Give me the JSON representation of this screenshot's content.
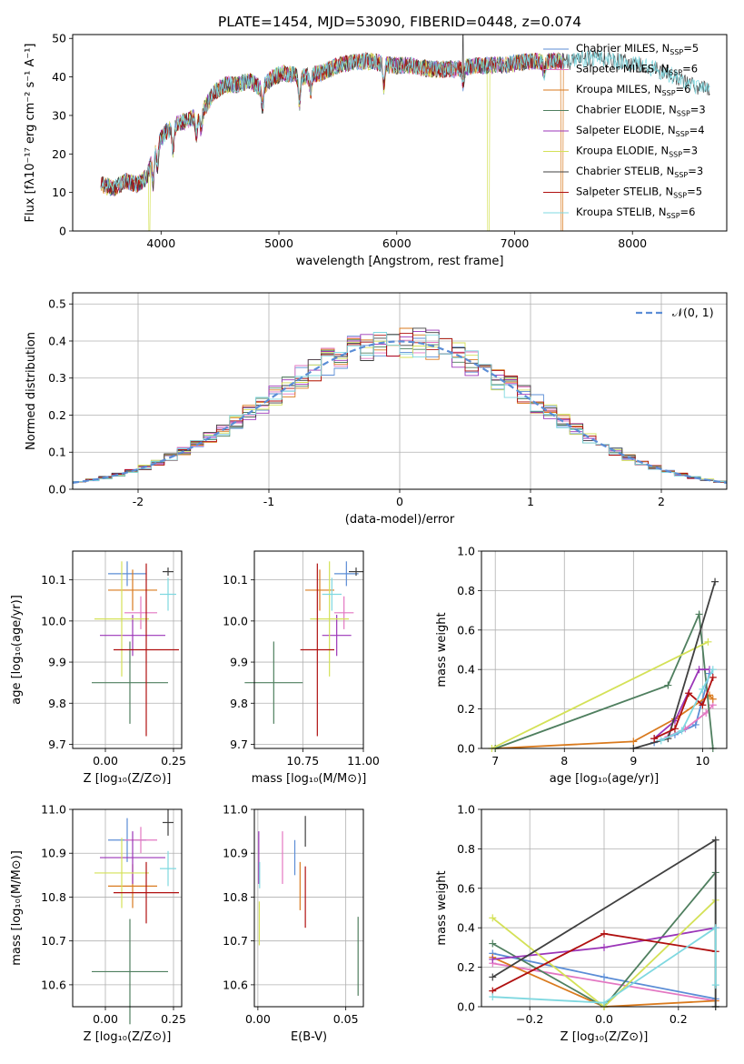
{
  "figure": {
    "title": "PLATE=1454, MJD=53090, FIBERID=0448, z=0.074"
  },
  "chart_data": [
    {
      "id": "spectrum",
      "type": "line",
      "title": "PLATE=1454, MJD=53090, FIBERID=0448, z=0.074",
      "xlabel": "wavelength [Angstrom, rest frame]",
      "ylabel": "Flux [fλ10⁻¹⁷ erg cm⁻² s⁻¹ A⁻¹]",
      "xlim": [
        3250,
        8800
      ],
      "ylim": [
        0,
        51
      ],
      "xticks": [
        4000,
        5000,
        6000,
        7000,
        8000
      ],
      "yticks": [
        0,
        10,
        20,
        30,
        40,
        50
      ],
      "grid": false,
      "legend": "upper right",
      "series": [
        {
          "name": "Chabrier MILES, N",
          "nssp": "=5",
          "color": "#5b8dd6"
        },
        {
          "name": "Salpeter MILES, N",
          "nssp": "=6",
          "color": "#e377c2"
        },
        {
          "name": "Kroupa MILES, N",
          "nssp": "=6",
          "color": "#d97a1e"
        },
        {
          "name": "Chabrier ELODIE, N",
          "nssp": "=3",
          "color": "#4f7f5f"
        },
        {
          "name": "Salpeter ELODIE, N",
          "nssp": "=4",
          "color": "#9b35b8"
        },
        {
          "name": "Kroupa ELODIE, N",
          "nssp": "=3",
          "color": "#d4e157"
        },
        {
          "name": "Chabrier STELIB, N",
          "nssp": "=3",
          "color": "#404040"
        },
        {
          "name": "Salpeter STELIB, N",
          "nssp": "=5",
          "color": "#b01010"
        },
        {
          "name": "Kroupa STELIB, N",
          "nssp": "=6",
          "color": "#7fd8e0"
        }
      ],
      "continuum": [
        [
          3500,
          12
        ],
        [
          3600,
          11
        ],
        [
          3700,
          13
        ],
        [
          3800,
          12
        ],
        [
          3880,
          14
        ],
        [
          3950,
          22
        ],
        [
          4050,
          26
        ],
        [
          4150,
          28
        ],
        [
          4250,
          29
        ],
        [
          4350,
          31
        ],
        [
          4450,
          36
        ],
        [
          4550,
          38
        ],
        [
          4650,
          38
        ],
        [
          4750,
          39
        ],
        [
          4850,
          37
        ],
        [
          4950,
          40
        ],
        [
          5050,
          41
        ],
        [
          5200,
          40
        ],
        [
          5350,
          41
        ],
        [
          5500,
          43
        ],
        [
          5650,
          44
        ],
        [
          5800,
          44
        ],
        [
          5950,
          43
        ],
        [
          6100,
          43
        ],
        [
          6300,
          42
        ],
        [
          6500,
          42
        ],
        [
          6700,
          43
        ],
        [
          6900,
          43
        ],
        [
          7100,
          44
        ],
        [
          7300,
          44
        ],
        [
          7500,
          44
        ],
        [
          7700,
          45
        ],
        [
          7900,
          44
        ],
        [
          8100,
          43
        ],
        [
          8300,
          41
        ],
        [
          8500,
          38
        ],
        [
          8700,
          36
        ]
      ],
      "absorptions": [
        {
          "x": 3934,
          "depth": 8
        },
        {
          "x": 3968,
          "depth": 6
        },
        {
          "x": 4102,
          "depth": 6
        },
        {
          "x": 4300,
          "depth": 5
        },
        {
          "x": 4340,
          "depth": 5
        },
        {
          "x": 4861,
          "depth": 5
        },
        {
          "x": 5175,
          "depth": 7
        },
        {
          "x": 5270,
          "depth": 4
        },
        {
          "x": 5890,
          "depth": 6
        },
        {
          "x": 6563,
          "depth": 4
        },
        {
          "x": 7250,
          "depth": 3
        }
      ]
    },
    {
      "id": "residuals",
      "type": "histogram",
      "xlabel": "(data-model)/error",
      "ylabel": "Normed distribution",
      "xlim": [
        -2.5,
        2.5
      ],
      "ylim": [
        0,
        0.53
      ],
      "xticks": [
        -2,
        -1,
        0,
        1,
        2
      ],
      "yticks": [
        0.0,
        0.1,
        0.2,
        0.3,
        0.4,
        0.5
      ],
      "grid": true,
      "legend": "upper right",
      "reference_label": "𝒩(0, 1)",
      "reference_color": "#5b8dd6",
      "bin_width": 0.1
    },
    {
      "id": "age_vs_Z",
      "type": "errorbar",
      "xlabel": "Z [log₁₀(Z/Z⊙)]",
      "ylabel": "age  [log₁₀(age/yr)]",
      "xlim": [
        -0.12,
        0.28
      ],
      "ylim": [
        9.69,
        10.17
      ],
      "xticks": [
        0.0,
        0.25
      ],
      "xticklabels": [
        "0.00",
        "0.25"
      ],
      "yticks": [
        9.7,
        9.8,
        9.9,
        10.0,
        10.1
      ],
      "points": [
        {
          "x": 0.08,
          "xerr": 0.07,
          "y": 10.115,
          "yerr": 0.03,
          "color": "#5b8dd6"
        },
        {
          "x": 0.13,
          "xerr": 0.06,
          "y": 10.02,
          "yerr": 0.04,
          "color": "#e377c2"
        },
        {
          "x": 0.1,
          "xerr": 0.09,
          "y": 10.075,
          "yerr": 0.05,
          "color": "#d97a1e"
        },
        {
          "x": 0.09,
          "xerr": 0.14,
          "y": 9.85,
          "yerr": 0.1,
          "color": "#4f7f5f"
        },
        {
          "x": 0.1,
          "xerr": 0.12,
          "y": 9.965,
          "yerr": 0.05,
          "color": "#9b35b8"
        },
        {
          "x": 0.06,
          "xerr": 0.1,
          "y": 10.005,
          "yerr": 0.14,
          "color": "#d4e157"
        },
        {
          "x": 0.23,
          "xerr": 0.02,
          "y": 10.12,
          "yerr": 0.01,
          "color": "#404040"
        },
        {
          "x": 0.15,
          "xerr": 0.12,
          "y": 9.93,
          "yerr": 0.21,
          "color": "#b01010"
        },
        {
          "x": 0.23,
          "xerr": 0.03,
          "y": 10.065,
          "yerr": 0.04,
          "color": "#7fd8e0"
        }
      ]
    },
    {
      "id": "age_vs_mass",
      "type": "errorbar",
      "xlabel": "mass [log₁₀(M/M⊙)]",
      "ylabel": "",
      "xlim": [
        10.55,
        11.0
      ],
      "ylim": [
        9.69,
        10.17
      ],
      "xticks": [
        10.75,
        11.0
      ],
      "xticklabels": [
        "10.75",
        "11.00"
      ],
      "yticks": [
        9.7,
        9.8,
        9.9,
        10.0,
        10.1
      ],
      "points": [
        {
          "x": 10.93,
          "xerr": 0.05,
          "y": 10.115,
          "yerr": 0.03,
          "color": "#5b8dd6"
        },
        {
          "x": 10.92,
          "xerr": 0.04,
          "y": 10.02,
          "yerr": 0.04,
          "color": "#e377c2"
        },
        {
          "x": 10.82,
          "xerr": 0.06,
          "y": 10.075,
          "yerr": 0.05,
          "color": "#d97a1e"
        },
        {
          "x": 10.63,
          "xerr": 0.12,
          "y": 9.85,
          "yerr": 0.1,
          "color": "#4f7f5f"
        },
        {
          "x": 10.89,
          "xerr": 0.06,
          "y": 9.965,
          "yerr": 0.05,
          "color": "#9b35b8"
        },
        {
          "x": 10.86,
          "xerr": 0.08,
          "y": 10.005,
          "yerr": 0.14,
          "color": "#d4e157"
        },
        {
          "x": 10.97,
          "xerr": 0.03,
          "y": 10.12,
          "yerr": 0.01,
          "color": "#404040"
        },
        {
          "x": 10.81,
          "xerr": 0.07,
          "y": 9.93,
          "yerr": 0.21,
          "color": "#b01010"
        },
        {
          "x": 10.87,
          "xerr": 0.04,
          "y": 10.065,
          "yerr": 0.04,
          "color": "#7fd8e0"
        }
      ]
    },
    {
      "id": "weight_vs_age",
      "type": "line",
      "xlabel": "age  [log₁₀(age/yr)]",
      "ylabel": "mass weight",
      "xlim": [
        6.8,
        10.35
      ],
      "ylim": [
        0,
        1
      ],
      "xticks": [
        7,
        8,
        9,
        10
      ],
      "yticks": [
        0.0,
        0.2,
        0.4,
        0.6,
        0.8,
        1.0
      ],
      "grid": true,
      "series": [
        {
          "color": "#5b8dd6",
          "x": [
            9.3,
            9.6,
            9.9,
            10.1
          ],
          "y": [
            0.03,
            0.07,
            0.12,
            0.38
          ]
        },
        {
          "color": "#e377c2",
          "x": [
            9.5,
            9.75,
            10.05,
            10.15
          ],
          "y": [
            0.06,
            0.1,
            0.18,
            0.22
          ]
        },
        {
          "color": "#d97a1e",
          "x": [
            7.0,
            9.0,
            9.6,
            10.1,
            10.15
          ],
          "y": [
            0.0,
            0.035,
            0.15,
            0.27,
            0.25
          ]
        },
        {
          "color": "#4f7f5f",
          "x": [
            7.0,
            9.5,
            9.95,
            10.15
          ],
          "y": [
            0.0,
            0.32,
            0.68,
            0.0
          ]
        },
        {
          "color": "#9b35b8",
          "x": [
            9.3,
            9.6,
            9.95,
            10.1
          ],
          "y": [
            0.05,
            0.14,
            0.4,
            0.4
          ]
        },
        {
          "color": "#d4e157",
          "x": [
            6.95,
            10.08
          ],
          "y": [
            0.0,
            0.54
          ]
        },
        {
          "color": "#404040",
          "x": [
            9.0,
            9.5,
            10.18
          ],
          "y": [
            0.0,
            0.05,
            0.845
          ]
        },
        {
          "color": "#b01010",
          "x": [
            9.3,
            9.6,
            9.8,
            10.0,
            10.15
          ],
          "y": [
            0.05,
            0.1,
            0.28,
            0.22,
            0.36
          ]
        },
        {
          "color": "#7fd8e0",
          "x": [
            9.4,
            9.7,
            10.0,
            10.15
          ],
          "y": [
            0.04,
            0.09,
            0.3,
            0.4
          ]
        }
      ]
    },
    {
      "id": "mass_vs_Z",
      "type": "errorbar",
      "xlabel": "Z [log₁₀(Z/Z⊙)]",
      "ylabel": "mass [log₁₀(M/M⊙)]",
      "xlim": [
        -0.12,
        0.28
      ],
      "ylim": [
        10.55,
        11.0
      ],
      "xticks": [
        0.0,
        0.25
      ],
      "xticklabels": [
        "0.00",
        "0.25"
      ],
      "yticks": [
        10.6,
        10.7,
        10.8,
        10.9,
        11.0
      ],
      "points": [
        {
          "x": 0.08,
          "xerr": 0.07,
          "y": 10.93,
          "yerr": 0.05,
          "color": "#5b8dd6"
        },
        {
          "x": 0.13,
          "xerr": 0.06,
          "y": 10.93,
          "yerr": 0.03,
          "color": "#e377c2"
        },
        {
          "x": 0.1,
          "xerr": 0.09,
          "y": 10.825,
          "yerr": 0.05,
          "color": "#d97a1e"
        },
        {
          "x": 0.09,
          "xerr": 0.14,
          "y": 10.63,
          "yerr": 0.12,
          "color": "#4f7f5f"
        },
        {
          "x": 0.1,
          "xerr": 0.12,
          "y": 10.89,
          "yerr": 0.06,
          "color": "#9b35b8"
        },
        {
          "x": 0.06,
          "xerr": 0.1,
          "y": 10.855,
          "yerr": 0.08,
          "color": "#d4e157"
        },
        {
          "x": 0.23,
          "xerr": 0.02,
          "y": 10.97,
          "yerr": 0.03,
          "color": "#404040"
        },
        {
          "x": 0.15,
          "xerr": 0.12,
          "y": 10.81,
          "yerr": 0.07,
          "color": "#b01010"
        },
        {
          "x": 0.23,
          "xerr": 0.03,
          "y": 10.865,
          "yerr": 0.04,
          "color": "#7fd8e0"
        }
      ]
    },
    {
      "id": "mass_vs_EBV",
      "type": "errorbar",
      "xlabel": "E(B-V)",
      "ylabel": "",
      "xlim": [
        -0.002,
        0.06
      ],
      "ylim": [
        10.55,
        11.0
      ],
      "xticks": [
        0.0,
        0.05
      ],
      "xticklabels": [
        "0.00",
        "0.05"
      ],
      "yticks": [
        10.6,
        10.7,
        10.8,
        10.9,
        11.0
      ],
      "points": [
        {
          "x": 0.021,
          "xerr": 0,
          "y": 10.89,
          "yerr": 0.04,
          "color": "#5b8dd6"
        },
        {
          "x": 0.014,
          "xerr": 0,
          "y": 10.89,
          "yerr": 0.06,
          "color": "#e377c2"
        },
        {
          "x": 0.024,
          "xerr": 0,
          "y": 10.825,
          "yerr": 0.055,
          "color": "#d97a1e"
        },
        {
          "x": 0.057,
          "xerr": 0,
          "y": 10.665,
          "yerr": 0.09,
          "color": "#4f7f5f"
        },
        {
          "x": 0.0005,
          "xerr": 0,
          "y": 10.89,
          "yerr": 0.06,
          "color": "#9b35b8"
        },
        {
          "x": 0.0008,
          "xerr": 0,
          "y": 10.74,
          "yerr": 0.05,
          "color": "#d4e157"
        },
        {
          "x": 0.027,
          "xerr": 0,
          "y": 10.95,
          "yerr": 0.035,
          "color": "#404040"
        },
        {
          "x": 0.027,
          "xerr": 0,
          "y": 10.8,
          "yerr": 0.07,
          "color": "#b01010"
        },
        {
          "x": 0.001,
          "xerr": 0,
          "y": 10.85,
          "yerr": 0.03,
          "color": "#7fd8e0"
        }
      ]
    },
    {
      "id": "weight_vs_Z",
      "type": "line",
      "xlabel": "Z [log₁₀(Z/Z⊙)]",
      "ylabel": "mass weight",
      "xlim": [
        -0.33,
        0.33
      ],
      "ylim": [
        0,
        1
      ],
      "xticks": [
        -0.2,
        0.0,
        0.2
      ],
      "xticklabels": [
        "−0.2",
        "0.0",
        "0.2"
      ],
      "yticks": [
        0.0,
        0.2,
        0.4,
        0.6,
        0.8,
        1.0
      ],
      "grid": true,
      "series": [
        {
          "color": "#5b8dd6",
          "x": [
            -0.3,
            0.0,
            0.3
          ],
          "y": [
            0.27,
            0.15,
            0.04
          ]
        },
        {
          "color": "#e377c2",
          "x": [
            -0.3,
            0.3
          ],
          "y": [
            0.22,
            0.03
          ]
        },
        {
          "color": "#d97a1e",
          "x": [
            -0.3,
            0.0,
            0.3
          ],
          "y": [
            0.25,
            0.0,
            0.03
          ]
        },
        {
          "color": "#4f7f5f",
          "x": [
            -0.3,
            0.0,
            0.3,
            0.3
          ],
          "y": [
            0.32,
            0.0,
            0.68,
            0.0
          ]
        },
        {
          "color": "#9b35b8",
          "x": [
            -0.3,
            0.0,
            0.3
          ],
          "y": [
            0.24,
            0.3,
            0.4
          ]
        },
        {
          "color": "#d4e157",
          "x": [
            -0.3,
            0.0,
            0.3
          ],
          "y": [
            0.45,
            0.0,
            0.54
          ]
        },
        {
          "color": "#404040",
          "x": [
            -0.3,
            0.3,
            0.3
          ],
          "y": [
            0.15,
            0.845,
            0.0
          ]
        },
        {
          "color": "#b01010",
          "x": [
            -0.3,
            0.0,
            0.3
          ],
          "y": [
            0.08,
            0.37,
            0.28
          ]
        },
        {
          "color": "#7fd8e0",
          "x": [
            -0.3,
            0.0,
            0.3,
            0.3
          ],
          "y": [
            0.05,
            0.02,
            0.4,
            0.11
          ]
        }
      ]
    }
  ]
}
